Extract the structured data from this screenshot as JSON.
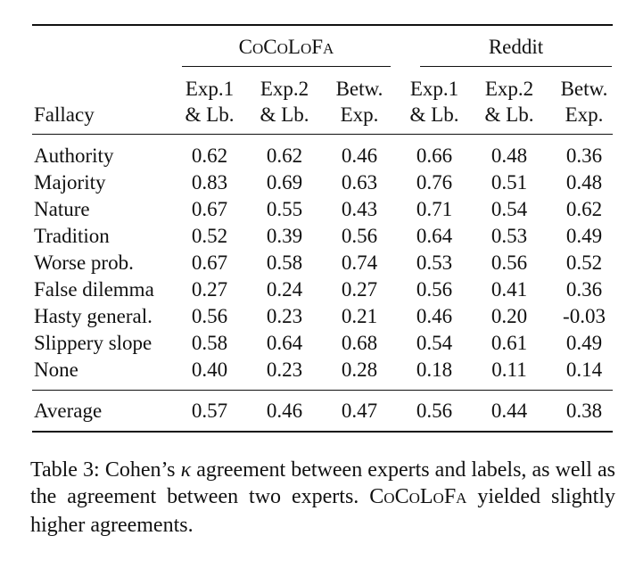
{
  "table": {
    "groups": [
      {
        "label_parts": [
          [
            "C",
            false
          ],
          [
            "O",
            true
          ],
          [
            "C",
            false
          ],
          [
            "O",
            true
          ],
          [
            "L",
            false
          ],
          [
            "O",
            true
          ],
          [
            "F",
            false
          ],
          [
            "A",
            true
          ]
        ]
      },
      {
        "label": "Reddit"
      }
    ],
    "row_header_label": "Fallacy",
    "column_headers": [
      {
        "line1": "Exp.1",
        "line2": "& Lb."
      },
      {
        "line1": "Exp.2",
        "line2": "& Lb."
      },
      {
        "line1": "Betw.",
        "line2": "Exp."
      },
      {
        "line1": "Exp.1",
        "line2": "& Lb."
      },
      {
        "line1": "Exp.2",
        "line2": "& Lb."
      },
      {
        "line1": "Betw.",
        "line2": "Exp."
      }
    ],
    "rows": [
      {
        "label": "Authority",
        "values": [
          "0.62",
          "0.62",
          "0.46",
          "0.66",
          "0.48",
          "0.36"
        ]
      },
      {
        "label": "Majority",
        "values": [
          "0.83",
          "0.69",
          "0.63",
          "0.76",
          "0.51",
          "0.48"
        ]
      },
      {
        "label": "Nature",
        "values": [
          "0.67",
          "0.55",
          "0.43",
          "0.71",
          "0.54",
          "0.62"
        ]
      },
      {
        "label": "Tradition",
        "values": [
          "0.52",
          "0.39",
          "0.56",
          "0.64",
          "0.53",
          "0.49"
        ]
      },
      {
        "label": "Worse prob.",
        "values": [
          "0.67",
          "0.58",
          "0.74",
          "0.53",
          "0.56",
          "0.52"
        ]
      },
      {
        "label": "False dilemma",
        "values": [
          "0.27",
          "0.24",
          "0.27",
          "0.56",
          "0.41",
          "0.36"
        ]
      },
      {
        "label": "Hasty general.",
        "values": [
          "0.56",
          "0.23",
          "0.21",
          "0.46",
          "0.20",
          "-0.03"
        ]
      },
      {
        "label": "Slippery slope",
        "values": [
          "0.58",
          "0.64",
          "0.68",
          "0.54",
          "0.61",
          "0.49"
        ]
      },
      {
        "label": "None",
        "values": [
          "0.40",
          "0.23",
          "0.28",
          "0.18",
          "0.11",
          "0.14"
        ]
      }
    ],
    "average": {
      "label": "Average",
      "values": [
        "0.57",
        "0.46",
        "0.47",
        "0.56",
        "0.44",
        "0.38"
      ]
    }
  },
  "caption": {
    "prefix": "Table 3: Cohen’s ",
    "kappa": "κ",
    "middle": " agreement between experts and labels, as well as the agreement between two experts. ",
    "name_parts": [
      [
        "C",
        false
      ],
      [
        "O",
        true
      ],
      [
        "C",
        false
      ],
      [
        "O",
        true
      ],
      [
        "L",
        false
      ],
      [
        "O",
        true
      ],
      [
        "F",
        false
      ],
      [
        "A",
        true
      ]
    ],
    "suffix": " yielded slightly higher agreements."
  }
}
